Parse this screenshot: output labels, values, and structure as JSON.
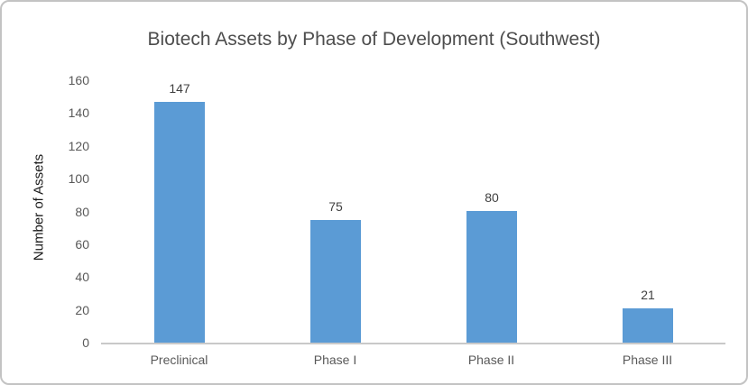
{
  "chart_data": {
    "type": "bar",
    "title": "Biotech Assets by Phase of Development (Southwest)",
    "categories": [
      "Preclinical",
      "Phase I",
      "Phase II",
      "Phase III"
    ],
    "values": [
      147,
      75,
      80,
      21
    ],
    "data_labels": [
      "147",
      "75",
      "80",
      "21"
    ],
    "xlabel": "",
    "ylabel": "Number of Assets",
    "ylim": [
      0,
      160
    ],
    "yticks": [
      "0",
      "20",
      "40",
      "60",
      "80",
      "100",
      "120",
      "140",
      "160"
    ],
    "grid": false,
    "legend": false,
    "colors": {
      "bar": "#5B9BD5",
      "axis_line": "#C9C9C9",
      "title_text": "#4D4D4D",
      "tick_text": "#595959",
      "data_label_text": "#404040",
      "y_axis_title_text": "#1A1A1A",
      "frame_border": "#C3C3C3"
    }
  }
}
